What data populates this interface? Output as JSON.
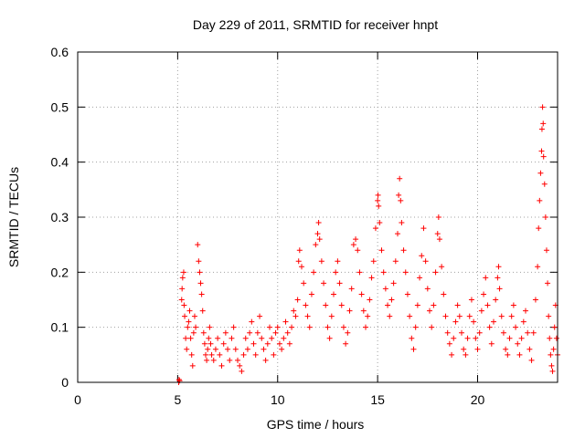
{
  "chart_data": {
    "type": "scatter",
    "title": "Day 229 of 2011, SRMTID for receiver hnpt",
    "xlabel": "GPS time / hours",
    "ylabel": "SRMTID / TECUs",
    "xlim": [
      0,
      24
    ],
    "ylim": [
      0,
      0.6
    ],
    "xticks": [
      0,
      5,
      10,
      15,
      20
    ],
    "xtick_labels": [
      "0",
      "5",
      "10",
      "15",
      "20"
    ],
    "yticks": [
      0,
      0.1,
      0.2,
      0.3,
      0.4,
      0.5,
      0.6
    ],
    "ytick_labels": [
      "0",
      "0.1",
      "0.2",
      "0.3",
      "0.4",
      "0.5",
      "0.6"
    ],
    "grid": true,
    "marker": "+",
    "marker_color": "#ff0000",
    "series": [
      {
        "points": [
          [
            5.05,
            0.0
          ],
          [
            5.07,
            0.005
          ],
          [
            5.1,
            0.003
          ],
          [
            5.2,
            0.15
          ],
          [
            5.22,
            0.17
          ],
          [
            5.25,
            0.19
          ],
          [
            5.3,
            0.2
          ],
          [
            5.32,
            0.14
          ],
          [
            5.35,
            0.12
          ],
          [
            5.4,
            0.08
          ],
          [
            5.45,
            0.06
          ],
          [
            5.5,
            0.1
          ],
          [
            5.55,
            0.11
          ],
          [
            5.6,
            0.13
          ],
          [
            5.65,
            0.08
          ],
          [
            5.7,
            0.05
          ],
          [
            5.75,
            0.03
          ],
          [
            5.8,
            0.09
          ],
          [
            5.85,
            0.12
          ],
          [
            5.9,
            0.1
          ],
          [
            6.0,
            0.25
          ],
          [
            6.05,
            0.22
          ],
          [
            6.1,
            0.2
          ],
          [
            6.15,
            0.18
          ],
          [
            6.2,
            0.16
          ],
          [
            6.25,
            0.13
          ],
          [
            6.3,
            0.09
          ],
          [
            6.35,
            0.07
          ],
          [
            6.4,
            0.05
          ],
          [
            6.45,
            0.04
          ],
          [
            6.5,
            0.06
          ],
          [
            6.55,
            0.08
          ],
          [
            6.6,
            0.1
          ],
          [
            6.65,
            0.07
          ],
          [
            6.7,
            0.05
          ],
          [
            6.8,
            0.04
          ],
          [
            6.9,
            0.06
          ],
          [
            7.0,
            0.08
          ],
          [
            7.1,
            0.05
          ],
          [
            7.2,
            0.03
          ],
          [
            7.3,
            0.07
          ],
          [
            7.4,
            0.09
          ],
          [
            7.5,
            0.06
          ],
          [
            7.6,
            0.04
          ],
          [
            7.7,
            0.08
          ],
          [
            7.8,
            0.1
          ],
          [
            7.9,
            0.06
          ],
          [
            8.0,
            0.04
          ],
          [
            8.1,
            0.03
          ],
          [
            8.2,
            0.02
          ],
          [
            8.3,
            0.05
          ],
          [
            8.4,
            0.08
          ],
          [
            8.5,
            0.06
          ],
          [
            8.6,
            0.09
          ],
          [
            8.7,
            0.11
          ],
          [
            8.8,
            0.07
          ],
          [
            8.9,
            0.05
          ],
          [
            9.0,
            0.09
          ],
          [
            9.1,
            0.12
          ],
          [
            9.2,
            0.08
          ],
          [
            9.3,
            0.06
          ],
          [
            9.4,
            0.04
          ],
          [
            9.5,
            0.07
          ],
          [
            9.6,
            0.1
          ],
          [
            9.7,
            0.08
          ],
          [
            9.8,
            0.05
          ],
          [
            9.9,
            0.09
          ],
          [
            10.0,
            0.1
          ],
          [
            10.1,
            0.07
          ],
          [
            10.2,
            0.06
          ],
          [
            10.3,
            0.08
          ],
          [
            10.4,
            0.11
          ],
          [
            10.5,
            0.09
          ],
          [
            10.6,
            0.07
          ],
          [
            10.7,
            0.1
          ],
          [
            10.8,
            0.13
          ],
          [
            10.9,
            0.12
          ],
          [
            11.0,
            0.15
          ],
          [
            11.05,
            0.22
          ],
          [
            11.1,
            0.24
          ],
          [
            11.2,
            0.21
          ],
          [
            11.3,
            0.18
          ],
          [
            11.4,
            0.14
          ],
          [
            11.5,
            0.12
          ],
          [
            11.6,
            0.1
          ],
          [
            11.7,
            0.16
          ],
          [
            11.8,
            0.2
          ],
          [
            11.9,
            0.25
          ],
          [
            12.0,
            0.27
          ],
          [
            12.05,
            0.29
          ],
          [
            12.1,
            0.26
          ],
          [
            12.2,
            0.22
          ],
          [
            12.3,
            0.18
          ],
          [
            12.4,
            0.14
          ],
          [
            12.5,
            0.1
          ],
          [
            12.6,
            0.08
          ],
          [
            12.7,
            0.12
          ],
          [
            12.8,
            0.16
          ],
          [
            12.9,
            0.2
          ],
          [
            13.0,
            0.22
          ],
          [
            13.1,
            0.18
          ],
          [
            13.2,
            0.14
          ],
          [
            13.3,
            0.1
          ],
          [
            13.4,
            0.07
          ],
          [
            13.5,
            0.09
          ],
          [
            13.6,
            0.13
          ],
          [
            13.7,
            0.17
          ],
          [
            13.8,
            0.25
          ],
          [
            13.9,
            0.26
          ],
          [
            14.0,
            0.24
          ],
          [
            14.1,
            0.2
          ],
          [
            14.2,
            0.16
          ],
          [
            14.3,
            0.13
          ],
          [
            14.4,
            0.1
          ],
          [
            14.5,
            0.12
          ],
          [
            14.6,
            0.15
          ],
          [
            14.7,
            0.19
          ],
          [
            14.8,
            0.22
          ],
          [
            14.9,
            0.28
          ],
          [
            15.0,
            0.33
          ],
          [
            15.02,
            0.34
          ],
          [
            15.05,
            0.32
          ],
          [
            15.1,
            0.29
          ],
          [
            15.2,
            0.24
          ],
          [
            15.3,
            0.2
          ],
          [
            15.4,
            0.17
          ],
          [
            15.5,
            0.14
          ],
          [
            15.6,
            0.12
          ],
          [
            15.7,
            0.15
          ],
          [
            15.8,
            0.18
          ],
          [
            15.9,
            0.22
          ],
          [
            16.0,
            0.27
          ],
          [
            16.05,
            0.34
          ],
          [
            16.1,
            0.37
          ],
          [
            16.15,
            0.33
          ],
          [
            16.2,
            0.29
          ],
          [
            16.3,
            0.24
          ],
          [
            16.4,
            0.2
          ],
          [
            16.5,
            0.16
          ],
          [
            16.6,
            0.12
          ],
          [
            16.7,
            0.08
          ],
          [
            16.8,
            0.06
          ],
          [
            16.9,
            0.1
          ],
          [
            17.0,
            0.14
          ],
          [
            17.1,
            0.19
          ],
          [
            17.2,
            0.23
          ],
          [
            17.3,
            0.28
          ],
          [
            17.4,
            0.22
          ],
          [
            17.5,
            0.17
          ],
          [
            17.6,
            0.13
          ],
          [
            17.7,
            0.1
          ],
          [
            17.8,
            0.14
          ],
          [
            17.9,
            0.2
          ],
          [
            18.0,
            0.27
          ],
          [
            18.05,
            0.3
          ],
          [
            18.1,
            0.26
          ],
          [
            18.2,
            0.21
          ],
          [
            18.3,
            0.16
          ],
          [
            18.4,
            0.12
          ],
          [
            18.5,
            0.09
          ],
          [
            18.6,
            0.07
          ],
          [
            18.7,
            0.05
          ],
          [
            18.8,
            0.08
          ],
          [
            18.9,
            0.11
          ],
          [
            19.0,
            0.14
          ],
          [
            19.1,
            0.12
          ],
          [
            19.2,
            0.09
          ],
          [
            19.3,
            0.06
          ],
          [
            19.4,
            0.05
          ],
          [
            19.5,
            0.08
          ],
          [
            19.6,
            0.12
          ],
          [
            19.7,
            0.15
          ],
          [
            19.8,
            0.11
          ],
          [
            19.9,
            0.08
          ],
          [
            20.0,
            0.06
          ],
          [
            20.1,
            0.09
          ],
          [
            20.2,
            0.13
          ],
          [
            20.3,
            0.16
          ],
          [
            20.4,
            0.19
          ],
          [
            20.5,
            0.14
          ],
          [
            20.6,
            0.1
          ],
          [
            20.7,
            0.07
          ],
          [
            20.8,
            0.11
          ],
          [
            20.9,
            0.15
          ],
          [
            21.0,
            0.19
          ],
          [
            21.05,
            0.21
          ],
          [
            21.1,
            0.17
          ],
          [
            21.2,
            0.12
          ],
          [
            21.3,
            0.09
          ],
          [
            21.4,
            0.06
          ],
          [
            21.5,
            0.05
          ],
          [
            21.6,
            0.08
          ],
          [
            21.7,
            0.12
          ],
          [
            21.8,
            0.14
          ],
          [
            21.9,
            0.1
          ],
          [
            22.0,
            0.07
          ],
          [
            22.1,
            0.05
          ],
          [
            22.2,
            0.08
          ],
          [
            22.3,
            0.11
          ],
          [
            22.4,
            0.13
          ],
          [
            22.5,
            0.09
          ],
          [
            22.6,
            0.06
          ],
          [
            22.7,
            0.04
          ],
          [
            22.8,
            0.09
          ],
          [
            22.9,
            0.15
          ],
          [
            23.0,
            0.21
          ],
          [
            23.05,
            0.28
          ],
          [
            23.1,
            0.33
          ],
          [
            23.15,
            0.38
          ],
          [
            23.2,
            0.42
          ],
          [
            23.22,
            0.46
          ],
          [
            23.25,
            0.5
          ],
          [
            23.28,
            0.47
          ],
          [
            23.3,
            0.41
          ],
          [
            23.35,
            0.36
          ],
          [
            23.4,
            0.3
          ],
          [
            23.45,
            0.24
          ],
          [
            23.5,
            0.18
          ],
          [
            23.55,
            0.12
          ],
          [
            23.6,
            0.08
          ],
          [
            23.65,
            0.05
          ],
          [
            23.7,
            0.03
          ],
          [
            23.75,
            0.02
          ],
          [
            23.8,
            0.06
          ],
          [
            23.85,
            0.1
          ],
          [
            23.9,
            0.14
          ],
          [
            23.95,
            0.08
          ],
          [
            24.0,
            0.05
          ]
        ]
      }
    ]
  }
}
